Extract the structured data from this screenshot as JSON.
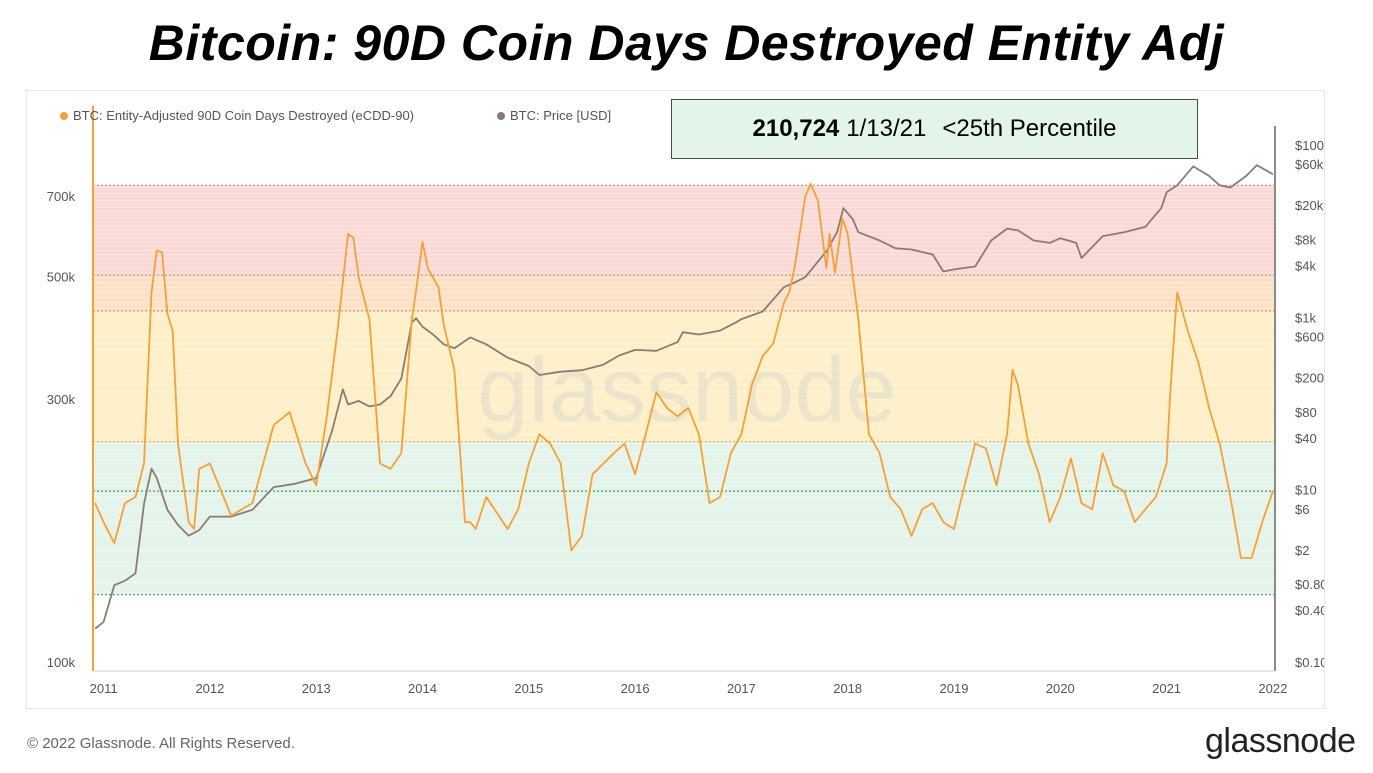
{
  "title": "Bitcoin: 90D Coin Days Destroyed Entity Adj",
  "callout": {
    "value": "210,724",
    "date": "1/13/21",
    "label": "<25th Percentile"
  },
  "footer": {
    "copyright": "© 2022 Glassnode. All Rights Reserved.",
    "logo": "glassnode"
  },
  "watermark": "glassnode",
  "colors": {
    "ecdd": "#f7a035",
    "price": "#8a7c74",
    "band_red": "#f8d9d6",
    "band_peach": "#fbe2c6",
    "band_yellow": "#fdf0c8",
    "band_green": "#e5f4ea"
  },
  "chart_data": {
    "type": "line",
    "legend": [
      {
        "name": "BTC: Entity-Adjusted 90D Coin Days Destroyed (eCDD-90)",
        "color": "#f7a035"
      },
      {
        "name": "BTC: Price [USD]",
        "color": "#8a7c74"
      }
    ],
    "x_ticks": [
      "2011",
      "2012",
      "2013",
      "2014",
      "2015",
      "2016",
      "2017",
      "2018",
      "2019",
      "2020",
      "2021",
      "2022"
    ],
    "xlim": [
      2010.9,
      2022.02
    ],
    "y_left": {
      "scale": "log",
      "ticks": [
        "100k",
        "300k",
        "500k",
        "700k"
      ],
      "tick_values": [
        100000,
        300000,
        500000,
        700000
      ]
    },
    "y_right": {
      "scale": "log",
      "ticks": [
        "$0.10",
        "$0.40",
        "$0.80",
        "$2",
        "$6",
        "$10",
        "$40",
        "$80",
        "$200",
        "$600",
        "$1k",
        "$4k",
        "$8k",
        "$20k",
        "$60k",
        "$100k"
      ],
      "tick_values": [
        0.1,
        0.4,
        0.8,
        2,
        6,
        10,
        40,
        80,
        200,
        600,
        1000,
        4000,
        8000,
        20000,
        60000,
        100000
      ]
    },
    "bands": [
      {
        "from": 505000,
        "to": 735000,
        "color": "#f8d9d6"
      },
      {
        "from": 435000,
        "to": 505000,
        "color": "#fbe2c6"
      },
      {
        "from": 252000,
        "to": 435000,
        "color": "#fdf0c8"
      },
      {
        "from": 133000,
        "to": 252000,
        "color": "#e5f4ea"
      }
    ],
    "levels": [
      735000,
      505000,
      435000,
      252000,
      205000,
      133000
    ],
    "series": [
      {
        "name": "BTC: Entity-Adjusted 90D Coin Days Destroyed (eCDD-90)",
        "x": [
          2010.92,
          2011.0,
          2011.1,
          2011.2,
          2011.3,
          2011.38,
          2011.45,
          2011.5,
          2011.55,
          2011.6,
          2011.65,
          2011.7,
          2011.8,
          2011.85,
          2011.9,
          2012.0,
          2012.2,
          2012.4,
          2012.6,
          2012.75,
          2012.9,
          2013.0,
          2013.1,
          2013.2,
          2013.3,
          2013.35,
          2013.4,
          2013.5,
          2013.6,
          2013.7,
          2013.8,
          2013.9,
          2013.95,
          2014.0,
          2014.05,
          2014.15,
          2014.2,
          2014.3,
          2014.4,
          2014.45,
          2014.5,
          2014.6,
          2014.8,
          2014.9,
          2015.0,
          2015.1,
          2015.2,
          2015.3,
          2015.4,
          2015.5,
          2015.6,
          2015.8,
          2015.9,
          2016.0,
          2016.1,
          2016.2,
          2016.3,
          2016.4,
          2016.5,
          2016.6,
          2016.7,
          2016.8,
          2016.9,
          2017.0,
          2017.1,
          2017.2,
          2017.3,
          2017.4,
          2017.45,
          2017.5,
          2017.6,
          2017.65,
          2017.72,
          2017.8,
          2017.83,
          2017.88,
          2017.95,
          2018.0,
          2018.05,
          2018.1,
          2018.2,
          2018.3,
          2018.4,
          2018.5,
          2018.6,
          2018.7,
          2018.8,
          2018.9,
          2019.0,
          2019.1,
          2019.2,
          2019.3,
          2019.4,
          2019.5,
          2019.55,
          2019.6,
          2019.7,
          2019.8,
          2019.9,
          2020.0,
          2020.1,
          2020.2,
          2020.3,
          2020.4,
          2020.5,
          2020.6,
          2020.7,
          2020.8,
          2020.9,
          2021.0,
          2021.03,
          2021.07,
          2021.1,
          2021.2,
          2021.3,
          2021.4,
          2021.5,
          2021.6,
          2021.7,
          2021.8,
          2021.9,
          2022.0
        ],
        "values": [
          195000,
          180000,
          165000,
          195000,
          200000,
          230000,
          470000,
          560000,
          555000,
          430000,
          400000,
          250000,
          180000,
          175000,
          225000,
          230000,
          185000,
          195000,
          270000,
          285000,
          230000,
          210000,
          280000,
          400000,
          600000,
          590000,
          500000,
          420000,
          230000,
          225000,
          240000,
          420000,
          490000,
          580000,
          520000,
          480000,
          410000,
          340000,
          180000,
          180000,
          175000,
          200000,
          175000,
          190000,
          230000,
          260000,
          250000,
          230000,
          160000,
          170000,
          220000,
          240000,
          250000,
          220000,
          260000,
          310000,
          290000,
          280000,
          290000,
          260000,
          195000,
          200000,
          240000,
          260000,
          320000,
          360000,
          380000,
          450000,
          470000,
          520000,
          700000,
          740000,
          690000,
          520000,
          600000,
          510000,
          640000,
          600000,
          500000,
          420000,
          260000,
          240000,
          200000,
          190000,
          170000,
          190000,
          195000,
          180000,
          175000,
          210000,
          250000,
          245000,
          210000,
          260000,
          340000,
          320000,
          250000,
          220000,
          180000,
          200000,
          235000,
          195000,
          190000,
          240000,
          210000,
          205000,
          180000,
          190000,
          200000,
          230000,
          300000,
          390000,
          470000,
          400000,
          350000,
          290000,
          250000,
          200000,
          155000,
          155000,
          180000,
          205000
        ]
      },
      {
        "name": "BTC: Price [USD]",
        "x": [
          2010.92,
          2011.0,
          2011.1,
          2011.2,
          2011.3,
          2011.38,
          2011.45,
          2011.5,
          2011.6,
          2011.7,
          2011.8,
          2011.9,
          2012.0,
          2012.2,
          2012.4,
          2012.6,
          2012.8,
          2013.0,
          2013.15,
          2013.25,
          2013.3,
          2013.4,
          2013.5,
          2013.6,
          2013.7,
          2013.8,
          2013.9,
          2013.94,
          2014.0,
          2014.1,
          2014.2,
          2014.3,
          2014.45,
          2014.6,
          2014.8,
          2015.0,
          2015.1,
          2015.3,
          2015.5,
          2015.7,
          2015.85,
          2016.0,
          2016.2,
          2016.4,
          2016.45,
          2016.6,
          2016.8,
          2016.95,
          2017.0,
          2017.2,
          2017.4,
          2017.5,
          2017.6,
          2017.8,
          2017.9,
          2017.96,
          2018.05,
          2018.1,
          2018.3,
          2018.45,
          2018.6,
          2018.8,
          2018.9,
          2019.0,
          2019.2,
          2019.35,
          2019.5,
          2019.6,
          2019.75,
          2019.9,
          2020.0,
          2020.15,
          2020.2,
          2020.4,
          2020.6,
          2020.8,
          2020.95,
          2021.0,
          2021.1,
          2021.25,
          2021.4,
          2021.5,
          2021.6,
          2021.75,
          2021.85,
          2022.0
        ],
        "values": [
          0.25,
          0.3,
          0.8,
          0.9,
          1.1,
          7,
          18,
          14,
          6,
          4,
          3,
          3.5,
          5,
          5,
          6,
          11,
          12,
          14,
          50,
          150,
          100,
          110,
          95,
          100,
          125,
          200,
          900,
          1000,
          800,
          650,
          500,
          450,
          600,
          500,
          350,
          280,
          220,
          240,
          250,
          290,
          370,
          430,
          420,
          530,
          690,
          650,
          720,
          900,
          980,
          1200,
          2300,
          2600,
          3000,
          6000,
          10000,
          19000,
          14000,
          10000,
          8000,
          6500,
          6300,
          5500,
          3500,
          3700,
          4000,
          8000,
          11000,
          10500,
          8000,
          7500,
          8500,
          7500,
          5000,
          9000,
          10000,
          11500,
          19000,
          29000,
          35000,
          58000,
          45000,
          35000,
          33000,
          45000,
          60000,
          47000
        ]
      }
    ]
  }
}
